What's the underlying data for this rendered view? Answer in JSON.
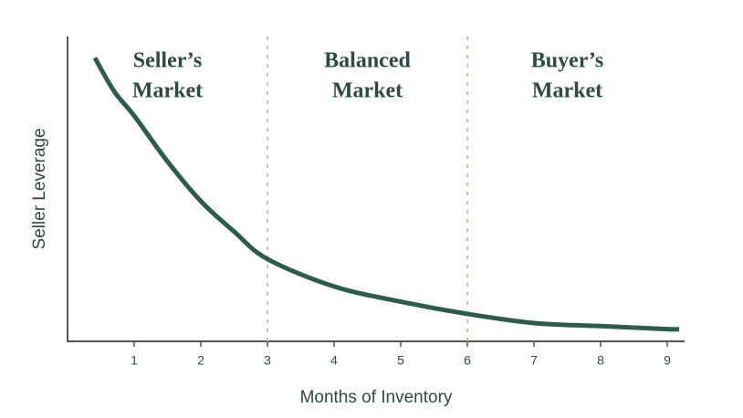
{
  "chart_data": {
    "type": "line",
    "xlabel": "Months of Inventory",
    "ylabel": "Seller Leverage",
    "x": [
      0.41,
      0.7,
      1,
      1.5,
      2,
      2.5,
      3,
      4,
      5,
      6,
      7,
      8,
      9,
      9.18
    ],
    "series": [
      {
        "color": "#2f5a4f",
        "values": [
          93,
          82,
          74,
          59,
          46,
          36,
          27,
          18,
          13,
          9,
          6,
          5,
          4,
          4
        ]
      }
    ],
    "xlim": [
      0,
      9.26
    ],
    "ylim": [
      0,
      100
    ],
    "xticks": [
      1,
      2,
      3,
      4,
      5,
      6,
      7,
      8,
      9
    ],
    "dividers": [
      3,
      6
    ],
    "regions": [
      [
        "Seller’s",
        "Market"
      ],
      [
        "Balanced",
        "Market"
      ],
      [
        "Buyer’s",
        "Market"
      ]
    ]
  }
}
